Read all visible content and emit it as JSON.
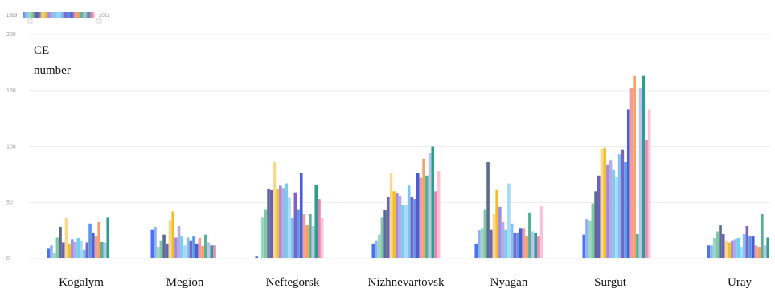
{
  "chart_data": {
    "type": "bar",
    "ylabel": "CE number",
    "ylabel_lines": [
      "CE",
      "number"
    ],
    "ylim": [
      0,
      200
    ],
    "yticks": [
      0,
      50,
      100,
      150,
      200
    ],
    "grid": true,
    "legend": {
      "type": "gradient-slider",
      "start_label": "1999",
      "end_label": "2021",
      "placement": "top-left"
    },
    "series_years": [
      1999,
      2000,
      2001,
      2002,
      2003,
      2004,
      2005,
      2006,
      2007,
      2008,
      2009,
      2010,
      2011,
      2012,
      2013,
      2014,
      2015,
      2016,
      2017,
      2018,
      2019,
      2020,
      2021
    ],
    "series_colors": [
      "#4a74ef",
      "#8fb0f4",
      "#9ad8c4",
      "#82c8a8",
      "#5a6d8a",
      "#6a5fc2",
      "#f8d98a",
      "#f3be2b",
      "#9f8ce0",
      "#b7a9e8",
      "#6fd1f0",
      "#a8d8f4",
      "#7bc3f2",
      "#8061c8",
      "#5b95e6",
      "#4b5ed1",
      "#f29aa0",
      "#f5a062",
      "#56b092",
      "#b9c4ef",
      "#2d9d8d",
      "#ee7fb2",
      "#f8c3d8"
    ],
    "categories": [
      "Kogalym",
      "Megion",
      "Neftegorsk",
      "Nizhnevartovsk",
      "Nyagan",
      "Surgut",
      "Uray"
    ],
    "values": {
      "Kogalym": [
        9,
        12,
        5,
        19,
        28,
        14,
        36,
        13,
        17,
        15,
        18,
        16,
        8,
        14,
        31,
        23,
        20,
        33,
        15,
        14,
        37,
        0,
        0
      ],
      "Megion": [
        26,
        28,
        10,
        16,
        21,
        13,
        34,
        42,
        19,
        29,
        20,
        12,
        19,
        16,
        20,
        13,
        18,
        11,
        21,
        14,
        12,
        12,
        0
      ],
      "Neftegorsk": [
        2,
        0,
        37,
        44,
        62,
        61,
        86,
        62,
        65,
        63,
        67,
        54,
        36,
        59,
        44,
        76,
        40,
        30,
        40,
        29,
        66,
        53,
        36
      ],
      "Nizhnevartovsk": [
        13,
        16,
        21,
        37,
        43,
        55,
        76,
        60,
        58,
        56,
        48,
        48,
        65,
        55,
        53,
        76,
        72,
        89,
        74,
        94,
        100,
        60,
        78
      ],
      "Nyagan": [
        13,
        25,
        27,
        44,
        86,
        26,
        40,
        61,
        46,
        33,
        26,
        67,
        31,
        23,
        23,
        27,
        27,
        20,
        41,
        24,
        23,
        20,
        47
      ],
      "Surgut": [
        21,
        35,
        34,
        49,
        60,
        74,
        98,
        99,
        84,
        88,
        79,
        73,
        93,
        97,
        86,
        133,
        152,
        163,
        22,
        152,
        163,
        106,
        133
      ],
      "Uray": [
        12,
        12,
        18,
        24,
        30,
        22,
        16,
        14,
        16,
        17,
        18,
        10,
        22,
        29,
        20,
        20,
        12,
        10,
        40,
        12,
        19,
        0,
        0
      ]
    }
  }
}
